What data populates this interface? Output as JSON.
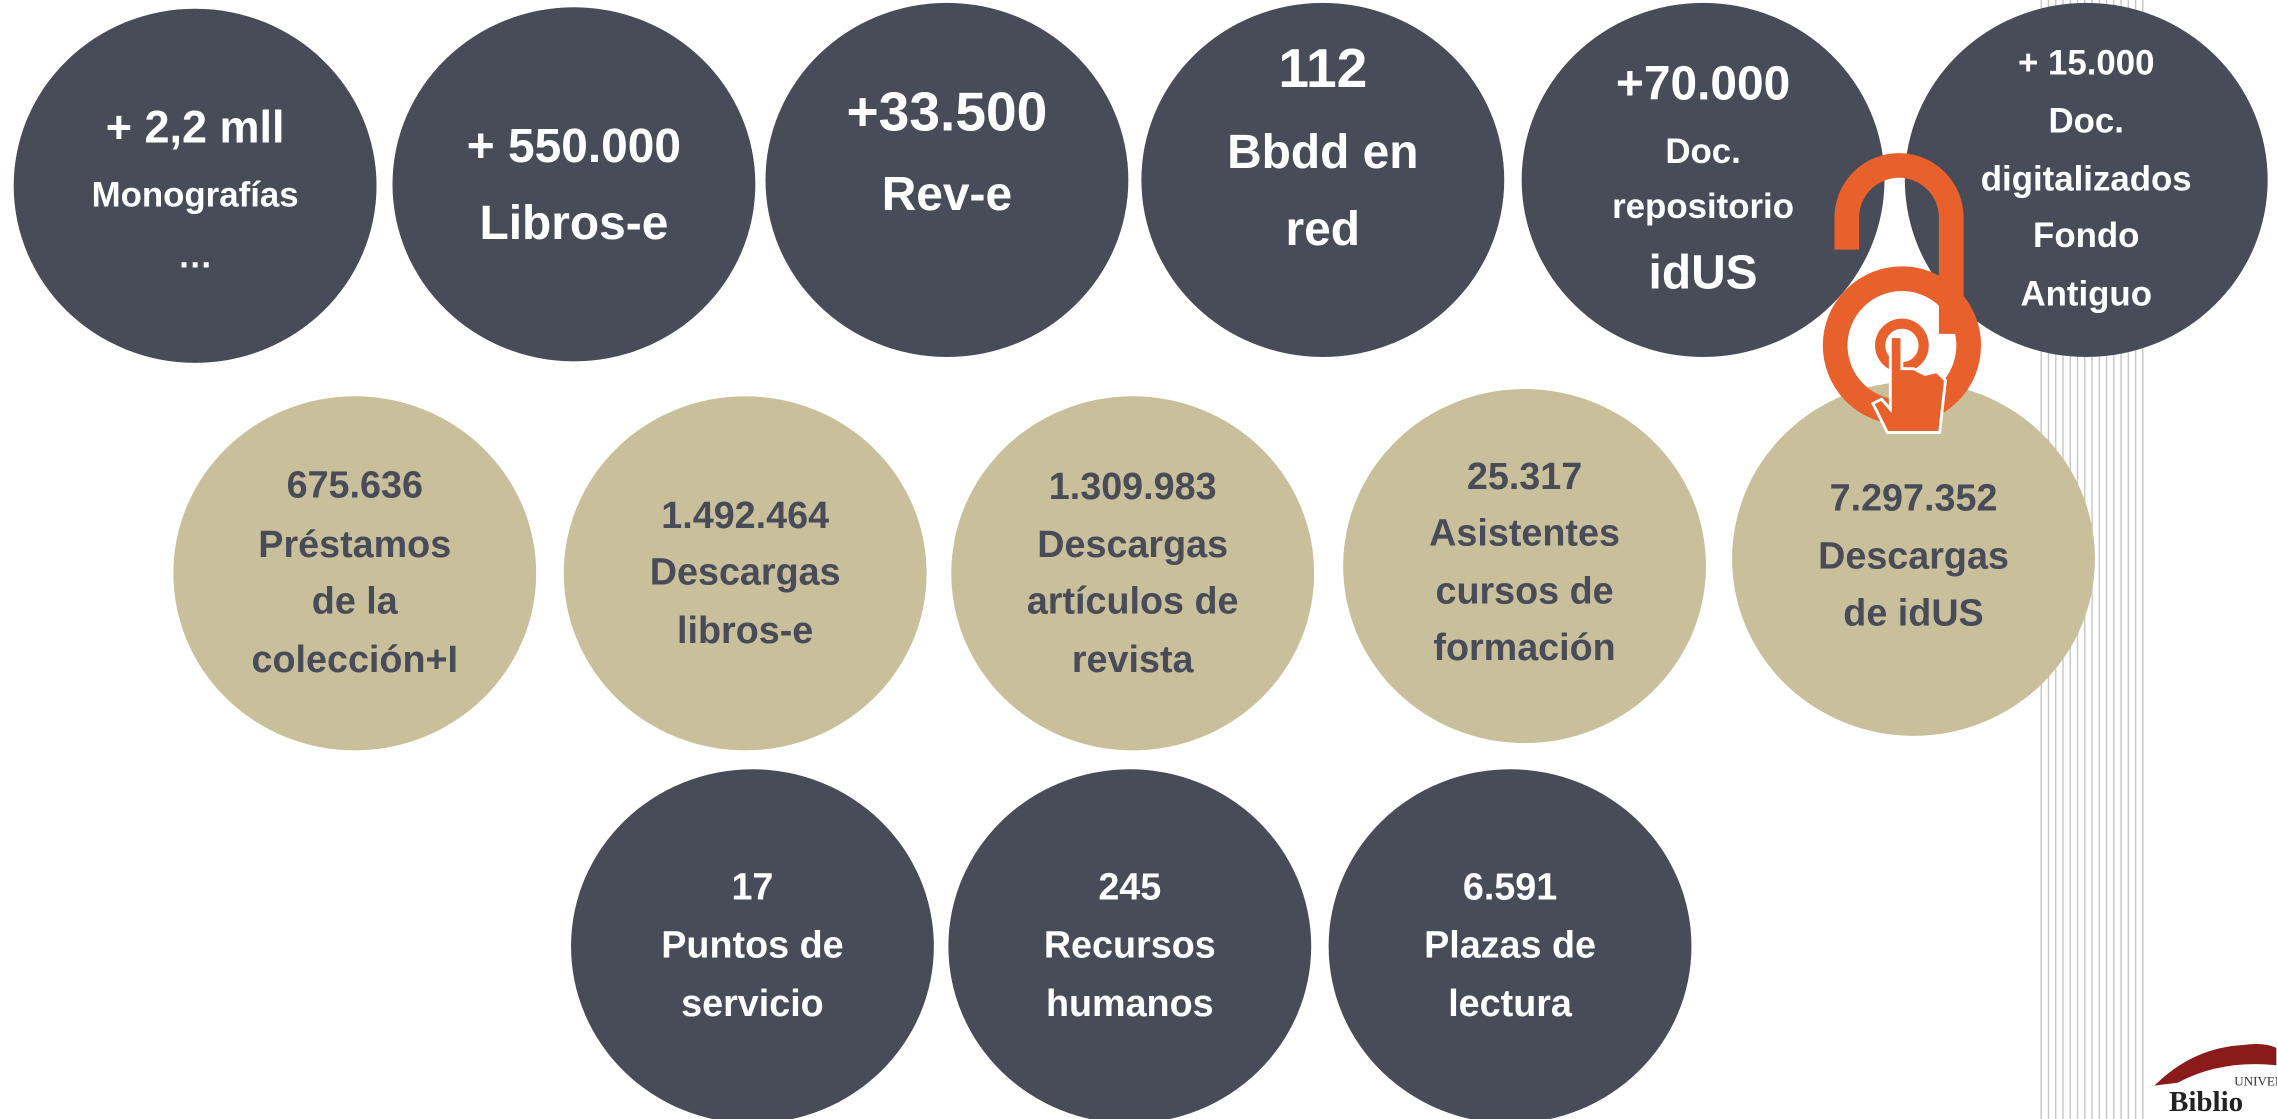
{
  "top_row": [
    {
      "lines": [
        "+ 2,2 mll",
        "Monografías",
        "…"
      ]
    },
    {
      "lines": [
        "+ 550.000",
        "Libros-e"
      ]
    },
    {
      "lines": [
        "+33.500",
        "Rev-e"
      ]
    },
    {
      "lines": [
        "112",
        "Bbdd en",
        "red"
      ]
    },
    {
      "lines": [
        "+70.000",
        "Doc.",
        "repositorio",
        "idUS"
      ]
    },
    {
      "lines": [
        "+ 15.000",
        "Doc.",
        "digitalizados",
        "Fondo",
        "Antiguo"
      ]
    }
  ],
  "middle_row": [
    {
      "lines": [
        "675.636",
        "Préstamos",
        "de la",
        "colección+I"
      ]
    },
    {
      "lines": [
        "1.492.464",
        "Descargas",
        "libros-e"
      ]
    },
    {
      "lines": [
        "1.309.983",
        "Descargas",
        "artículos de",
        "revista"
      ]
    },
    {
      "lines": [
        "25.317",
        "Asistentes",
        "cursos de",
        "formación"
      ]
    },
    {
      "lines": [
        "7.297.352",
        "Descargas",
        "de idUS"
      ]
    }
  ],
  "bottom_row": [
    {
      "lines": [
        "17",
        "Puntos de",
        "servicio"
      ]
    },
    {
      "lines": [
        "245",
        "Recursos",
        "humanos"
      ]
    },
    {
      "lines": [
        "6.591",
        "Plazas de",
        "lectura"
      ]
    }
  ],
  "logo": {
    "small": "UNIVER",
    "name": "Biblio"
  }
}
